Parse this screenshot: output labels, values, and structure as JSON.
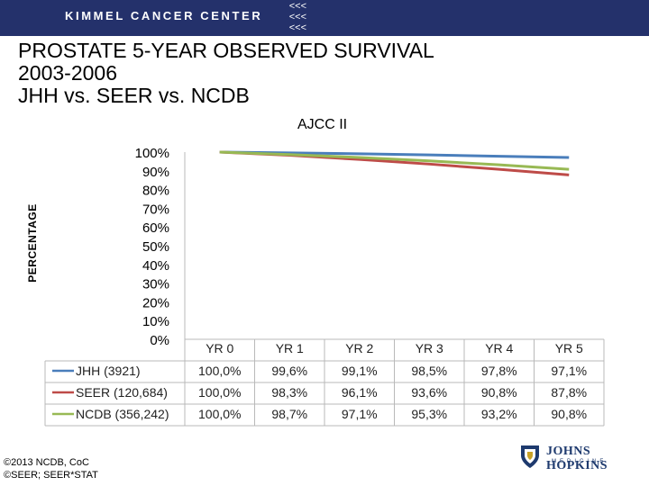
{
  "banner": {
    "text": "KIMMEL CANCER CENTER",
    "bg": "#24316b"
  },
  "slide": {
    "title_lines": [
      "PROSTATE 5-YEAR OBSERVED SURVIVAL",
      "2003-2006",
      "JHH vs. SEER vs. NCDB"
    ]
  },
  "footer": {
    "lines": [
      "©2013 NCDB, CoC",
      "©SEER; SEER*STAT"
    ]
  },
  "logo": {
    "name": "JOHNS HOPKINS",
    "sub": "MEDICINE",
    "icon": "shield-icon"
  },
  "chart_data": {
    "type": "line",
    "title": "AJCC II",
    "ylabel": "PERCENTAGE",
    "categories": [
      "YR 0",
      "YR 1",
      "YR 2",
      "YR 3",
      "YR 4",
      "YR 5"
    ],
    "ylim": [
      0,
      100
    ],
    "yticks": [
      "100%",
      "90%",
      "80%",
      "70%",
      "60%",
      "50%",
      "40%",
      "30%",
      "20%",
      "10%",
      "0%"
    ],
    "grid": false,
    "legend": "table-below",
    "series": [
      {
        "name": "JHH (3921)",
        "color": "#4a7ebb",
        "values": [
          100.0,
          99.6,
          99.1,
          98.5,
          97.8,
          97.1
        ],
        "labels": [
          "100,0%",
          "99,6%",
          "99,1%",
          "98,5%",
          "97,8%",
          "97,1%"
        ]
      },
      {
        "name": "SEER (120,684)",
        "color": "#be4b48",
        "values": [
          100.0,
          98.3,
          96.1,
          93.6,
          90.8,
          87.8
        ],
        "labels": [
          "100,0%",
          "98,3%",
          "96,1%",
          "93,6%",
          "90,8%",
          "87,8%"
        ]
      },
      {
        "name": "NCDB (356,242)",
        "color": "#98b954",
        "values": [
          100.0,
          98.7,
          97.1,
          95.3,
          93.2,
          90.8
        ],
        "labels": [
          "100,0%",
          "98,7%",
          "97,1%",
          "95,3%",
          "93,2%",
          "90,8%"
        ]
      }
    ]
  }
}
